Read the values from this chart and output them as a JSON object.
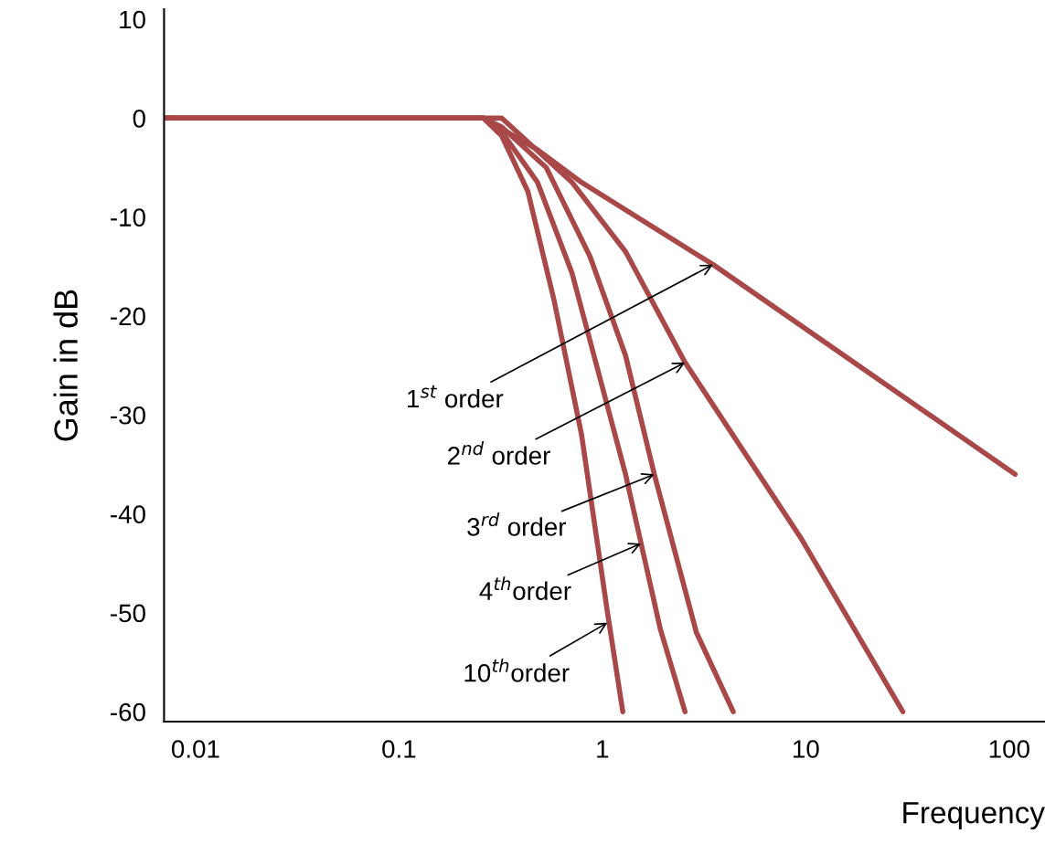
{
  "chart_data": {
    "type": "line",
    "xlabel": "Frequency",
    "ylabel": "Gain in dB",
    "log": "x",
    "xlim": [
      0.007,
      150
    ],
    "ylim": [
      -61,
      11
    ],
    "xticks": [
      0.01,
      0.1,
      1,
      10,
      100
    ],
    "yticks": [
      10,
      0,
      -10,
      -20,
      -30,
      -40,
      -50,
      -60
    ],
    "grid": false,
    "legend": false,
    "marker": "none",
    "line_style": "solid",
    "series": [
      {
        "color": "#a84848",
        "x": [
          0.007,
          0.26,
          0.48,
          0.79,
          3.5,
          107
        ],
        "values": [
          0,
          0,
          -3.2,
          -6.5,
          -14.8,
          -36
        ]
      },
      {
        "color": "#a84848",
        "x": [
          0.007,
          0.26,
          0.32,
          0.71,
          1.3,
          2.55,
          9.5,
          30
        ],
        "values": [
          0,
          0,
          0,
          -6.5,
          -13.5,
          -24.7,
          -42.5,
          -60
        ]
      },
      {
        "color": "#a84848",
        "x": [
          0.007,
          0.26,
          0.32,
          0.53,
          0.87,
          1.3,
          1.8,
          2.9,
          4.4
        ],
        "values": [
          0,
          0,
          -0.9,
          -5,
          -14,
          -24,
          -36,
          -52,
          -60
        ]
      },
      {
        "color": "#a84848",
        "x": [
          0.007,
          0.26,
          0.32,
          0.48,
          0.71,
          1.3,
          1.93,
          2.55
        ],
        "values": [
          0,
          0,
          -1.4,
          -6.5,
          -15.7,
          -36,
          -51.7,
          -60
        ]
      },
      {
        "color": "#a84848",
        "x": [
          0.007,
          0.26,
          0.32,
          0.43,
          0.58,
          0.79,
          1.06,
          1.26
        ],
        "values": [
          0,
          0,
          -1.8,
          -7.4,
          -18.5,
          -32,
          -50,
          -60
        ]
      }
    ],
    "annotations": [
      {
        "text": "1$^{st}$ order",
        "x": 3.5,
        "y": -14.8
      },
      {
        "text": "2$^{nd}$ order",
        "x": 2.55,
        "y": -24.7
      },
      {
        "text": "3$^{rd}$ order",
        "x": 1.8,
        "y": -36
      },
      {
        "text": "4$^{th}$order",
        "x": 1.55,
        "y": -43
      },
      {
        "text": "10$^{th}$order",
        "x": 1.06,
        "y": -51
      }
    ]
  }
}
